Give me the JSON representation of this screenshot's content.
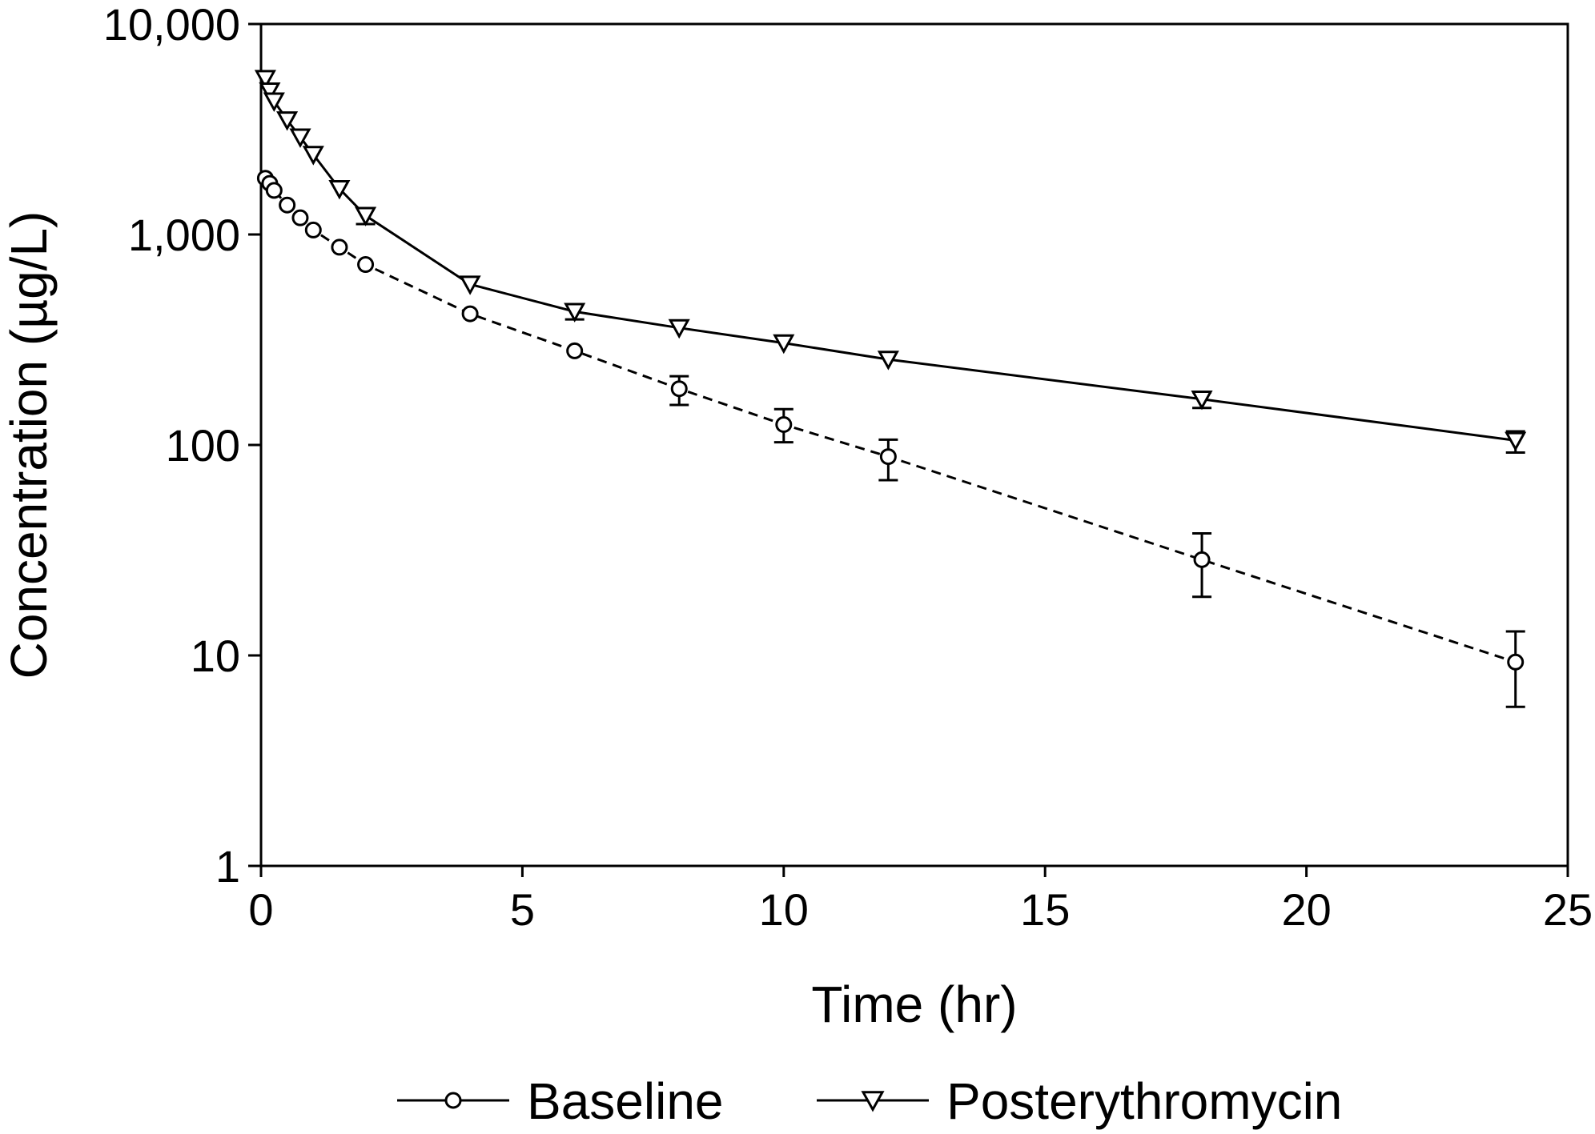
{
  "chart_data": {
    "type": "line",
    "xlabel": "Time (hr)",
    "ylabel": "Concentration (µg/L)",
    "xlim": [
      0,
      25
    ],
    "ylim": [
      1,
      10000
    ],
    "yscale": "log",
    "x_ticks": [
      0,
      5,
      10,
      15,
      20,
      25
    ],
    "x_tick_labels": [
      "0",
      "5",
      "10",
      "15",
      "20",
      "25"
    ],
    "y_ticks": [
      1,
      10,
      100,
      1000,
      10000
    ],
    "y_tick_labels": [
      "1",
      "10",
      "100",
      "1,000",
      "10,000"
    ],
    "grid": false,
    "legend_position": "bottom",
    "series": [
      {
        "name": "Baseline",
        "marker": "circle",
        "line_style": "dashed",
        "color": "#000000",
        "x": [
          0.083,
          0.167,
          0.25,
          0.5,
          0.75,
          1,
          1.5,
          2,
          4,
          6,
          8,
          10,
          12,
          18,
          24
        ],
        "y": [
          1850,
          1750,
          1620,
          1380,
          1200,
          1050,
          870,
          720,
          420,
          280,
          185,
          125,
          88,
          28.5,
          9.3
        ],
        "err_low": [
          null,
          null,
          null,
          null,
          null,
          null,
          null,
          null,
          null,
          null,
          155,
          103,
          68,
          19,
          5.7
        ],
        "err_high": [
          null,
          null,
          null,
          null,
          null,
          null,
          null,
          null,
          null,
          null,
          212,
          148,
          106,
          38,
          13
        ]
      },
      {
        "name": "Posterythromycin",
        "marker": "triangle-down",
        "line_style": "solid",
        "color": "#000000",
        "x": [
          0.083,
          0.167,
          0.25,
          0.5,
          0.75,
          1,
          1.5,
          2,
          4,
          6,
          8,
          10,
          12,
          18,
          24
        ],
        "y": [
          5500,
          4800,
          4300,
          3500,
          2900,
          2400,
          1650,
          1230,
          580,
          430,
          360,
          305,
          255,
          165,
          105
        ],
        "err_low": [
          null,
          null,
          null,
          null,
          null,
          null,
          null,
          1120,
          null,
          395,
          null,
          null,
          null,
          150,
          92
        ],
        "err_high": [
          null,
          null,
          null,
          null,
          null,
          null,
          null,
          null,
          null,
          null,
          null,
          null,
          null,
          178,
          116
        ]
      }
    ]
  }
}
